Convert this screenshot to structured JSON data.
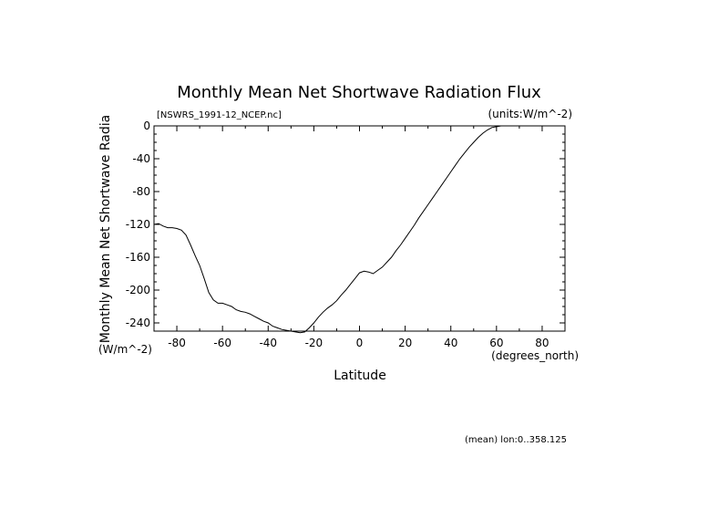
{
  "chart_data": {
    "type": "line",
    "title": "Monthly Mean Net Shortwave Radiation Flux",
    "file_label": "[NSWRS_1991-12_NCEP.nc]",
    "units_label": "(units:W/m^-2)",
    "xlabel": "Latitude",
    "x_units": "(degrees_north)",
    "ylabel": "Monthly Mean Net Shortwave Radia",
    "y_units": "(W/m^-2)",
    "footer": "(mean) lon:0..358.125",
    "xlim": [
      -90,
      90
    ],
    "ylim": [
      -250,
      0
    ],
    "x_ticks": [
      -80,
      -60,
      -40,
      -20,
      0,
      20,
      40,
      60,
      80
    ],
    "y_ticks": [
      0,
      -40,
      -80,
      -120,
      -160,
      -200,
      -240
    ],
    "series": [
      {
        "x": [
          -90,
          -88,
          -86,
          -84,
          -82,
          -80,
          -78,
          -76,
          -74,
          -72,
          -70,
          -68,
          -66,
          -64,
          -62,
          -60,
          -58,
          -56,
          -54,
          -52,
          -50,
          -48,
          -46,
          -44,
          -42,
          -40,
          -38,
          -36,
          -34,
          -32,
          -30,
          -28,
          -26,
          -24,
          -22,
          -20,
          -18,
          -16,
          -14,
          -12,
          -10,
          -8,
          -6,
          -4,
          -2,
          0,
          2,
          4,
          6,
          8,
          10,
          12,
          14,
          16,
          18,
          20,
          22,
          24,
          26,
          28,
          30,
          32,
          34,
          36,
          38,
          40,
          42,
          44,
          46,
          48,
          50,
          52,
          54,
          56,
          58,
          60,
          62,
          64,
          66,
          68,
          70,
          72,
          74,
          76,
          78,
          80,
          82,
          84,
          86,
          88,
          90
        ],
        "y": [
          -120,
          -119,
          -122,
          -124,
          -124,
          -125,
          -127,
          -133,
          -145,
          -158,
          -170,
          -186,
          -203,
          -212,
          -216,
          -216,
          -218,
          -220,
          -224,
          -226,
          -227,
          -229,
          -232,
          -235,
          -238,
          -240,
          -244,
          -246,
          -248,
          -249,
          -250,
          -251,
          -252,
          -251,
          -246,
          -240,
          -233,
          -227,
          -222,
          -218,
          -213,
          -206,
          -200,
          -193,
          -186,
          -179,
          -177,
          -178,
          -180,
          -176,
          -172,
          -166,
          -160,
          -152,
          -145,
          -137,
          -129,
          -121,
          -112,
          -104,
          -96,
          -88,
          -80,
          -72,
          -64,
          -56,
          -48,
          -40,
          -33,
          -26,
          -20,
          -14,
          -9,
          -5,
          -2,
          -1,
          0,
          0,
          0,
          0,
          0,
          0,
          0,
          0,
          0,
          0,
          0,
          0,
          0,
          0,
          0
        ]
      }
    ]
  }
}
